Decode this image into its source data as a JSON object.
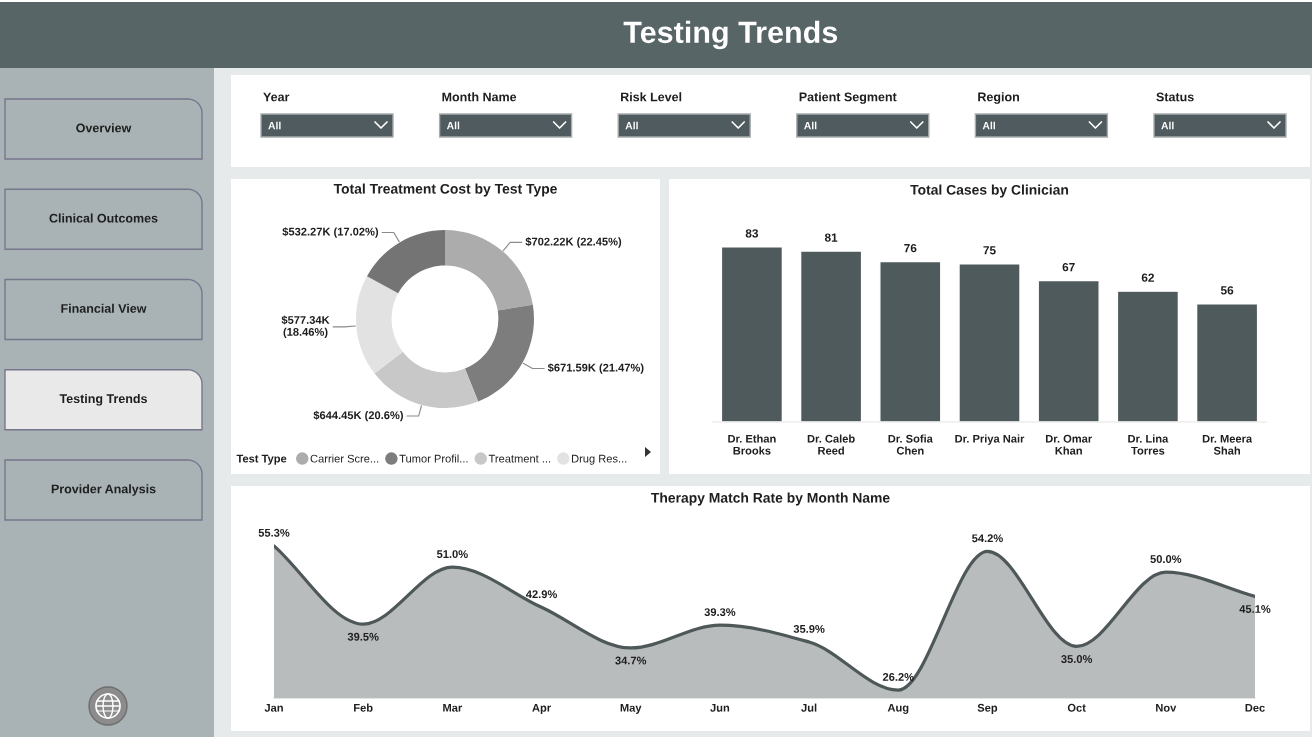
{
  "chart_data": [
    {
      "type": "other",
      "title": "Testing Trends"
    },
    {
      "type": "other",
      "annotations": [
        "Overview",
        "Clinical Outcomes",
        "Financial View",
        "Testing Trends",
        "Provider Analysis"
      ],
      "colors": [
        "#a9b3b5",
        "#a9b3b5",
        "#a9b3b5",
        "#e9e9ea",
        "#a9b3b5"
      ]
    },
    {
      "type": "other",
      "categories": [
        "Year",
        "Month Name",
        "Risk Level",
        "Patient Segment",
        "Region",
        "Status"
      ],
      "value_labels": [
        "All",
        "All",
        "All",
        "All",
        "All",
        "All"
      ]
    },
    {
      "type": "donut",
      "title": "Total Treatment Cost by Test Type",
      "legend_title": "Test Type",
      "categories": [
        "Carrier Scre...",
        "Tumor Profil...",
        "Treatment ...",
        "Drug Res...",
        null
      ],
      "values": [
        22.45,
        21.47,
        20.6,
        18.46,
        17.02
      ],
      "colors": [
        "#acacac",
        "#7d7d7d",
        "#c8c8c8",
        "#e2e2e2",
        "#747474"
      ],
      "value_labels": [
        "$702.22K (22.45%)",
        "$671.59K (21.47%)",
        "$644.45K (20.6%)",
        "$577.34K (18.46%)",
        "$532.27K (17.02%)"
      ],
      "legend": "bottom"
    },
    {
      "type": "bar",
      "title": "Total Cases by Clinician",
      "categories": [
        "Dr. Ethan Brooks",
        "Dr. Caleb Reed",
        "Dr. Sofia Chen",
        "Dr. Priya Nair",
        "Dr. Omar Khan",
        "Dr. Lina Torres",
        "Dr. Meera Shah"
      ],
      "values": [
        83,
        81,
        76,
        75,
        67,
        62,
        56
      ],
      "color": "#4f5a5c",
      "data_labels": true,
      "tick_labels": "x"
    },
    {
      "type": "area",
      "title": "Therapy Match Rate by Month Name",
      "categories": [
        "Jan",
        "Feb",
        "Mar",
        "Apr",
        "May",
        "Jun",
        "Jul",
        "Aug",
        "Sep",
        "Oct",
        "Nov",
        "Dec"
      ],
      "values": [
        55.3,
        39.5,
        51.0,
        42.9,
        34.7,
        39.3,
        35.9,
        26.2,
        54.2,
        35.0,
        50.0,
        45.1
      ],
      "value_labels": [
        "55.3%",
        "39.5%",
        "51.0%",
        "42.9%",
        "34.7%",
        "39.3%",
        "35.9%",
        "26.2%",
        "54.2%",
        "35.0%",
        "50.0%",
        "45.1%"
      ],
      "color": "#4f5859",
      "tick_labels": "x"
    }
  ]
}
